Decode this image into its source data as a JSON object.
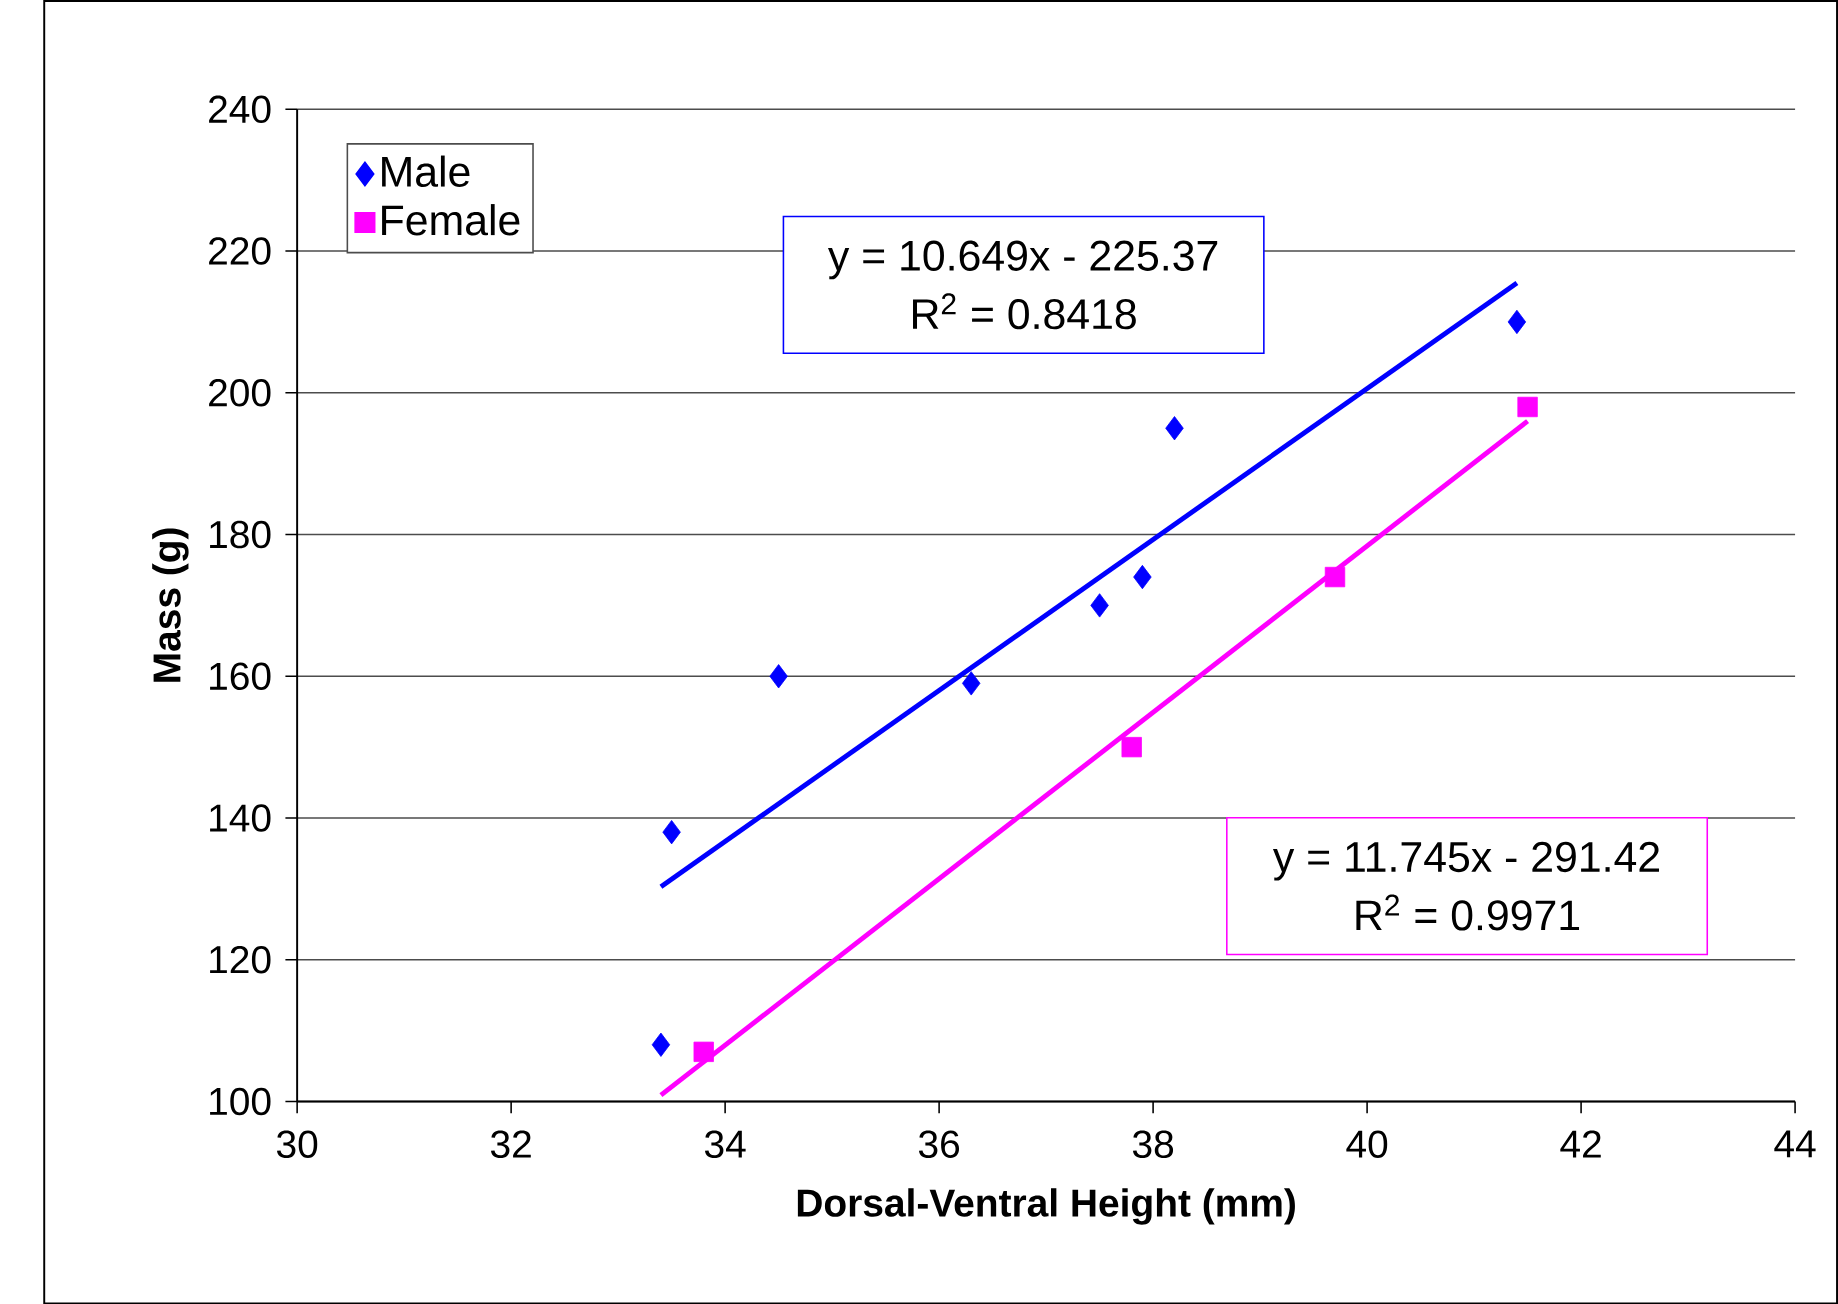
{
  "chart_data": {
    "type": "scatter",
    "xlabel": "Dorsal-Ventral Height (mm)",
    "ylabel": "Mass (g)",
    "xlim": [
      30,
      44
    ],
    "xticks": [
      30,
      32,
      34,
      36,
      38,
      40,
      42,
      44
    ],
    "ylim": [
      100,
      240
    ],
    "yticks": [
      100,
      120,
      140,
      160,
      180,
      200,
      220,
      240
    ],
    "grid": "y",
    "legend": "top left",
    "annotations": [
      "y = 10.649x - 225.37",
      "R$^{2}$ = 0.8418",
      "y = 11.745x - 291.42",
      "R$^{2}$ = 0.9971"
    ],
    "series": [
      {
        "name": "Male",
        "color": "#0000ff",
        "marker": "diamond",
        "x": [
          33.4,
          33.5,
          34.5,
          36.3,
          37.5,
          37.9,
          38.2,
          41.4
        ],
        "values": [
          108,
          138,
          160,
          159,
          170,
          174,
          195,
          210
        ]
      },
      {
        "name": "Female",
        "color": "#ff00ff",
        "marker": "square",
        "x": [
          33.8,
          37.8,
          39.7,
          41.5
        ],
        "values": [
          107,
          150,
          174,
          198
        ]
      },
      {
        "type": "line",
        "color": "#0000ff",
        "marker": "none",
        "x": [
          33.4,
          41.4
        ],
        "values": [
          130.3,
          215.5
        ]
      },
      {
        "type": "line",
        "color": "#ff00ff",
        "marker": "none",
        "x": [
          33.4,
          41.5
        ],
        "values": [
          100.9,
          196.0
        ]
      }
    ]
  }
}
